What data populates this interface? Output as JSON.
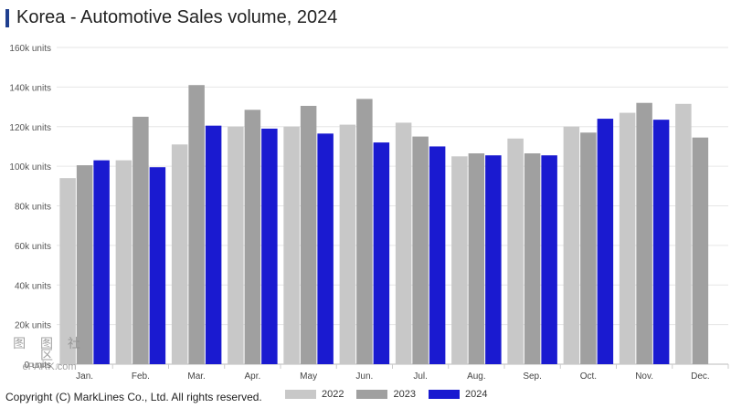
{
  "header": {
    "title": "Korea - Automotive Sales volume, 2024"
  },
  "footer": {
    "copyright": "Copyright (C) MarkLines Co., Ltd. All rights reserved."
  },
  "watermark": {
    "line1": "图 图 社 区",
    "line2": "ePARK.com"
  },
  "colors": {
    "s2022": "#c8c8c8",
    "s2023": "#a0a0a0",
    "s2024": "#1a1ad0",
    "title_accent": "#1f3f8f"
  },
  "chart_data": {
    "type": "bar",
    "title": "Korea - Automotive Sales volume, 2024",
    "categories": [
      "Jan.",
      "Feb.",
      "Mar.",
      "Apr.",
      "May",
      "Jun.",
      "Jul.",
      "Aug.",
      "Sep.",
      "Oct.",
      "Nov.",
      "Dec."
    ],
    "series": [
      {
        "name": "2022",
        "color": "#c8c8c8",
        "values": [
          94000,
          103000,
          111000,
          120000,
          120000,
          121000,
          122000,
          105000,
          114000,
          120000,
          127000,
          131500
        ]
      },
      {
        "name": "2023",
        "color": "#a0a0a0",
        "values": [
          100500,
          125000,
          141000,
          128500,
          130500,
          134000,
          115000,
          106500,
          106500,
          117000,
          132000,
          114500
        ]
      },
      {
        "name": "2024",
        "color": "#1a1ad0",
        "values": [
          103000,
          99500,
          120500,
          119000,
          116500,
          112000,
          110000,
          105500,
          105500,
          124000,
          123500,
          null
        ]
      }
    ],
    "ylim": [
      0,
      160000
    ],
    "yticks": [
      0,
      20000,
      40000,
      60000,
      80000,
      100000,
      120000,
      140000,
      160000
    ],
    "ytick_labels": [
      "0 units",
      "20k units",
      "40k units",
      "60k units",
      "80k units",
      "100k units",
      "120k units",
      "140k units",
      "160k units"
    ],
    "grid": true,
    "legend_position": "bottom"
  }
}
